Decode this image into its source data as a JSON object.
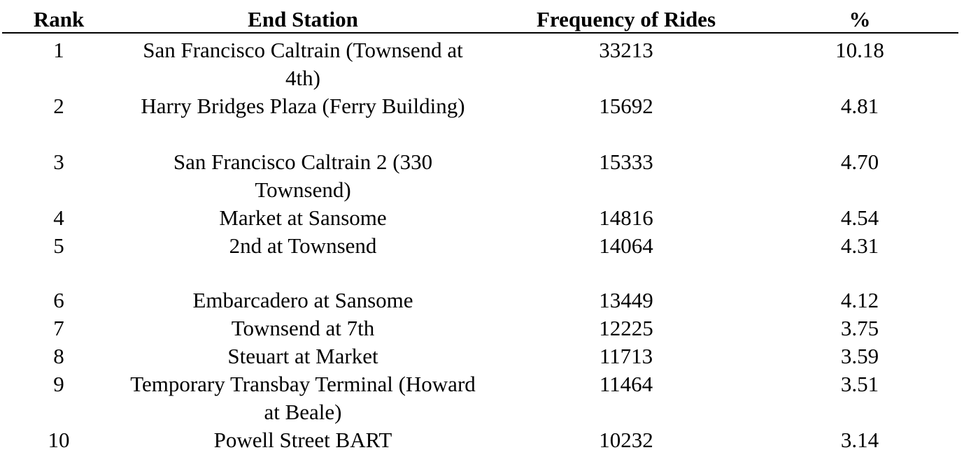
{
  "table": {
    "headers": {
      "rank": "Rank",
      "station": "End Station",
      "frequency": "Frequency of Rides",
      "percent": "%"
    },
    "rows": [
      {
        "rank": "1",
        "station": "San Francisco Caltrain (Townsend at 4th)",
        "frequency": "33213",
        "percent": "10.18"
      },
      {
        "rank": "2",
        "station": "Harry Bridges Plaza (Ferry Building)",
        "frequency": "15692",
        "percent": "4.81"
      },
      {
        "rank": "3",
        "station": "San Francisco Caltrain 2 (330 Townsend)",
        "frequency": "15333",
        "percent": "4.70"
      },
      {
        "rank": "4",
        "station": "Market at Sansome",
        "frequency": "14816",
        "percent": "4.54"
      },
      {
        "rank": "5",
        "station": "2nd at Townsend",
        "frequency": "14064",
        "percent": "4.31"
      },
      {
        "rank": "6",
        "station": "Embarcadero at Sansome",
        "frequency": "13449",
        "percent": "4.12"
      },
      {
        "rank": "7",
        "station": "Townsend at 7th",
        "frequency": "12225",
        "percent": "3.75"
      },
      {
        "rank": "8",
        "station": "Steuart at Market",
        "frequency": "11713",
        "percent": "3.59"
      },
      {
        "rank": "9",
        "station": "Temporary Transbay Terminal (Howard at Beale)",
        "frequency": "11464",
        "percent": "3.51"
      },
      {
        "rank": "10",
        "station": "Powell Street BART",
        "frequency": "10232",
        "percent": "3.14"
      }
    ]
  }
}
